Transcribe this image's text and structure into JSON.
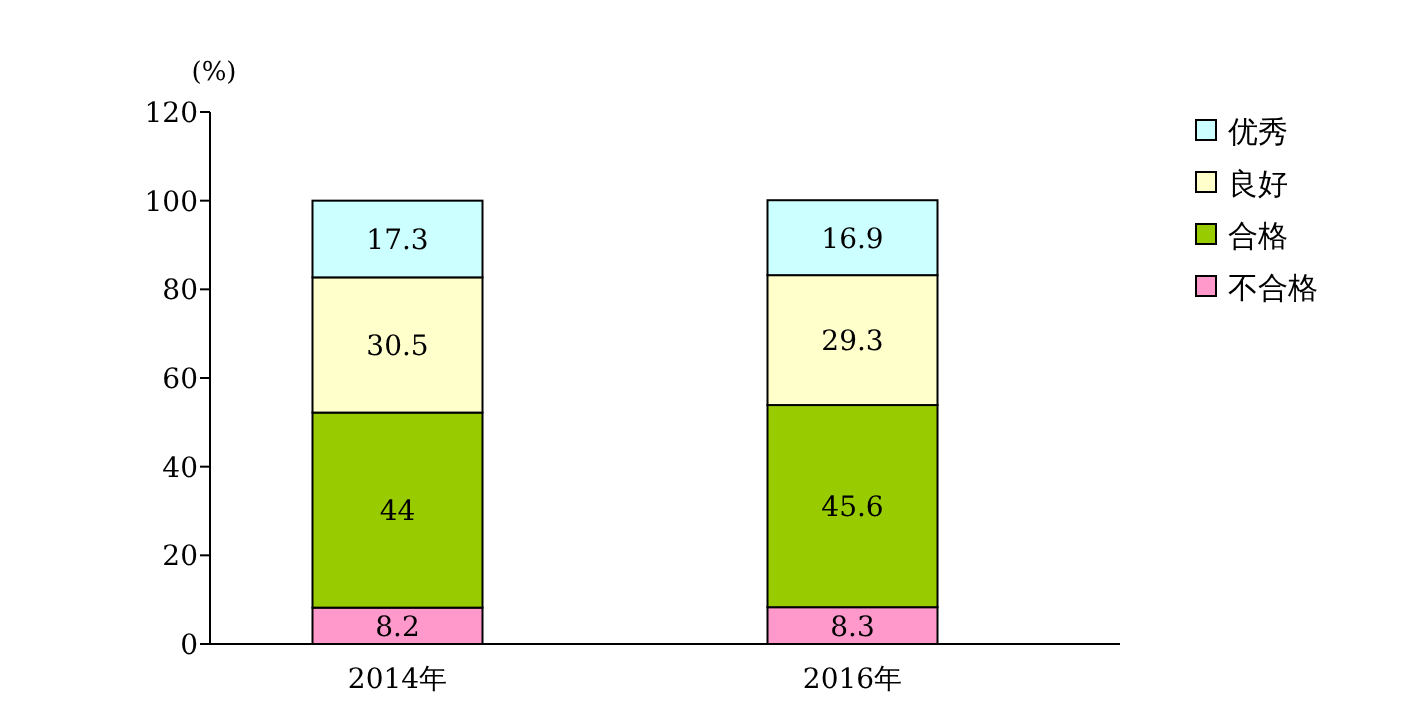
{
  "chart_data": {
    "type": "bar",
    "stacked": true,
    "ylabel": "(%)",
    "categories": [
      "2014年",
      "2016年"
    ],
    "series": [
      {
        "name": "不合格",
        "color": "#ff99cc",
        "values": [
          8.2,
          8.3
        ]
      },
      {
        "name": "合格",
        "color": "#99cc00",
        "values": [
          44,
          45.6
        ]
      },
      {
        "name": "良好",
        "color": "#ffffcc",
        "values": [
          30.5,
          29.3
        ]
      },
      {
        "name": "优秀",
        "color": "#ccffff",
        "values": [
          17.3,
          16.9
        ]
      }
    ],
    "ylim": [
      0,
      120
    ],
    "yticks": [
      0,
      20,
      40,
      60,
      80,
      100,
      120
    ],
    "data_labels": true,
    "legend": "right",
    "grid": false
  }
}
